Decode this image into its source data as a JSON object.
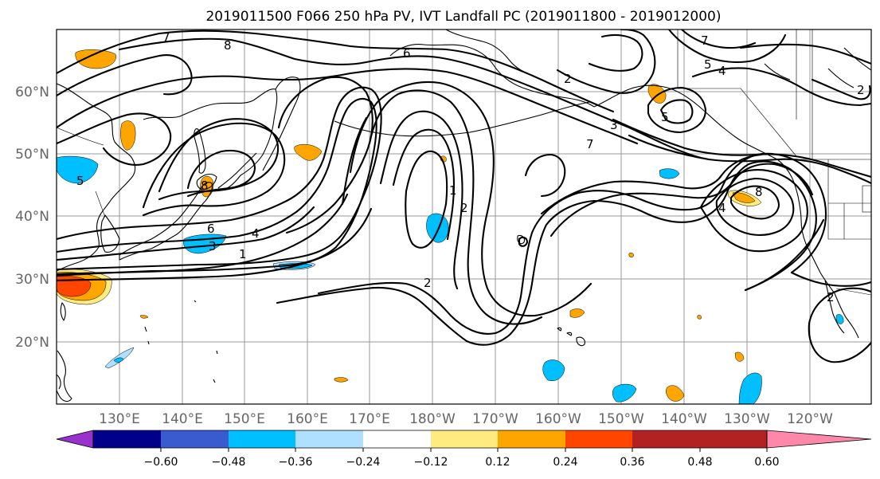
{
  "title": "2019011500 F066 250 hPa PV, IVT Landfall PC (2019011800 - 2019012000)",
  "map": {
    "lat_ticks": [
      "60°N",
      "50°N",
      "40°N",
      "30°N",
      "20°N"
    ],
    "lon_ticks": [
      "130°E",
      "140°E",
      "150°E",
      "160°E",
      "170°E",
      "180°W",
      "170°W",
      "160°W",
      "150°W",
      "140°W",
      "130°W",
      "120°W"
    ],
    "contour_labels": [
      "7",
      "8",
      "6",
      "2",
      "7",
      "5",
      "4",
      "2",
      "3",
      "7",
      "5",
      "4",
      "1",
      "2",
      "8",
      "6",
      "4",
      "3",
      "1",
      "2",
      "8",
      "5",
      "2"
    ],
    "shading_colors": {
      "strong_positive": "#ff4500",
      "positive": "#ffa500",
      "weak_positive": "#ffeb80",
      "negative": "#00bfff",
      "weak_negative": "#b0e0ff"
    }
  },
  "colorbar": {
    "colors": [
      "#9932cc",
      "#00008b",
      "#3a5bcf",
      "#00bfff",
      "#b0e0ff",
      "#ffffff",
      "#ffeb80",
      "#ffa500",
      "#ff4500",
      "#b22222",
      "#ff88aa"
    ],
    "labels": [
      "−0.60",
      "−0.48",
      "−0.36",
      "−0.24",
      "−0.12",
      "0.12",
      "0.24",
      "0.36",
      "0.48",
      "0.60"
    ]
  }
}
